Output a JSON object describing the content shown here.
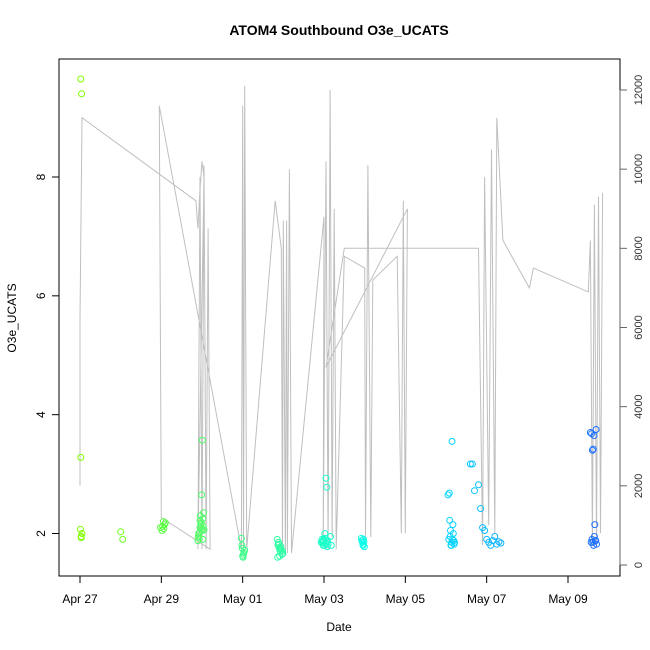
{
  "chart_data": {
    "type": "scatter",
    "title": "ATOM4 Southbound O3e_UCATS",
    "xlabel": "Date",
    "ylabel": "O3e_UCATS",
    "x_ticks": [
      "Apr 27",
      "Apr 29",
      "May 01",
      "May 03",
      "May 05",
      "May 07",
      "May 09"
    ],
    "x_range_days": [
      -0.6,
      12.7
    ],
    "y_ticks": [
      "2",
      "4",
      "6",
      "8"
    ],
    "ylim": [
      1.45,
      9.9
    ],
    "y2_ticks": [
      "0",
      "2000",
      "4000",
      "6000",
      "8000",
      "10000",
      "12000"
    ],
    "y2lim": [
      -400,
      12400
    ],
    "grid": false,
    "legend": "none",
    "colors": {
      "gray_line": "#bfbfbf",
      "point_gradient_start": "#7fff00",
      "point_gradient_mid": "#00ffff",
      "point_gradient_end": "#1e6fff"
    },
    "series": [
      {
        "type": "points",
        "x_days": [
          0.02,
          0.04,
          0.01,
          0.03,
          0.02,
          0.05,
          0.03,
          1.0,
          1.05,
          1.98,
          2.02,
          2.05,
          2.08,
          2.1,
          2.03,
          2.06,
          2.9,
          2.92,
          2.95,
          2.97,
          3.0,
          3.02,
          2.93,
          2.96,
          2.99,
          3.01,
          3.03,
          2.94,
          2.98,
          3.0,
          3.04,
          2.91,
          2.95,
          3.05,
          3.02,
          3.97,
          3.98,
          4.0,
          4.02,
          4.05,
          4.03,
          3.99,
          4.01,
          4.85,
          4.88,
          4.9,
          4.92,
          4.95,
          4.97,
          4.87,
          4.91,
          4.94,
          4.98,
          4.86,
          4.93,
          4.99,
          4.89,
          5.93,
          5.95,
          5.98,
          6.0,
          6.02,
          6.05,
          6.07,
          6.1,
          5.97,
          6.03,
          6.08,
          5.96,
          6.01,
          6.06,
          5.99,
          6.04,
          6.09,
          6.16,
          6.18,
          6.93,
          6.95,
          6.97,
          6.99,
          6.92,
          6.96,
          6.98,
          6.94,
          6.96,
          9.05,
          9.08,
          9.1,
          9.12,
          9.15,
          9.18,
          9.2,
          9.07,
          9.11,
          9.14,
          9.17,
          9.19,
          9.09,
          9.13,
          9.16,
          9.21,
          9.6,
          9.65,
          9.7,
          9.8,
          9.85,
          9.9,
          9.95,
          10.0,
          10.05,
          10.1,
          10.15,
          10.2,
          10.25,
          10.3,
          10.35
        ],
        "y": [
          9.65,
          9.4,
          2.07,
          1.95,
          3.28,
          2.0,
          1.93,
          2.03,
          1.9,
          2.1,
          2.05,
          2.2,
          2.15,
          2.18,
          2.12,
          2.08,
          1.88,
          2.0,
          2.1,
          2.15,
          2.05,
          2.25,
          1.92,
          2.3,
          2.65,
          3.57,
          2.12,
          2.02,
          2.18,
          2.08,
          2.35,
          1.95,
          2.22,
          2.06,
          1.9,
          1.92,
          1.8,
          1.62,
          1.65,
          1.72,
          1.68,
          1.75,
          1.6,
          1.9,
          1.85,
          1.75,
          1.7,
          1.72,
          1.65,
          1.8,
          1.62,
          1.78,
          1.7,
          1.6,
          1.74,
          1.66,
          1.82,
          1.85,
          1.9,
          1.8,
          1.88,
          2.0,
          2.93,
          2.78,
          1.82,
          1.87,
          1.92,
          1.78,
          1.85,
          1.8,
          1.87,
          1.9,
          1.82,
          1.88,
          1.95,
          1.8,
          1.88,
          1.85,
          1.9,
          1.78,
          1.92,
          1.82,
          1.86,
          1.88,
          1.8,
          2.65,
          2.68,
          1.95,
          1.8,
          3.55,
          2.0,
          1.82,
          1.9,
          2.05,
          1.85,
          2.15,
          1.88,
          2.22,
          1.8,
          1.9,
          1.85,
          3.17,
          3.17,
          2.72,
          2.82,
          2.42,
          2.1,
          2.05,
          1.9,
          1.85,
          1.8,
          1.88,
          1.95,
          1.82,
          1.86,
          1.84
        ],
        "y_note_source": "estimated"
      },
      {
        "type": "points_late",
        "x_days": [
          12.55,
          12.58,
          12.6,
          12.62,
          12.65,
          12.68,
          12.7,
          12.57,
          12.63,
          12.66,
          12.59,
          12.61,
          12.64,
          12.69,
          12.67
        ],
        "y": [
          3.7,
          3.68,
          3.4,
          3.42,
          1.95,
          1.88,
          1.82,
          1.85,
          1.8,
          2.15,
          1.9,
          1.85,
          3.65,
          3.75,
          1.88
        ]
      },
      {
        "type": "gray_profile",
        "points_days_y2": [
          [
            0.0,
            2000
          ],
          [
            0.0,
            6200
          ],
          [
            0.05,
            11300
          ],
          [
            2.85,
            9200
          ],
          [
            2.9,
            8500
          ],
          [
            2.95,
            9500
          ],
          [
            3.0,
            10200
          ],
          [
            3.05,
            9800
          ],
          [
            2.9,
            400
          ],
          [
            2.95,
            9800
          ],
          [
            3.0,
            400
          ],
          [
            3.05,
            10100
          ],
          [
            3.1,
            400
          ],
          [
            3.15,
            8500
          ],
          [
            3.2,
            400
          ],
          [
            2.0,
            1200
          ],
          [
            1.95,
            11600
          ],
          [
            3.97,
            400
          ],
          [
            4.0,
            11600
          ],
          [
            4.02,
            300
          ],
          [
            4.05,
            12100
          ],
          [
            4.1,
            400
          ],
          [
            4.8,
            9200
          ],
          [
            4.95,
            8000
          ],
          [
            4.98,
            300
          ],
          [
            5.0,
            8700
          ],
          [
            5.05,
            300
          ],
          [
            5.08,
            8700
          ],
          [
            5.1,
            300
          ],
          [
            5.15,
            10000
          ],
          [
            5.2,
            300
          ],
          [
            6.0,
            8800
          ],
          [
            5.98,
            500
          ],
          [
            6.05,
            10200
          ],
          [
            6.1,
            400
          ],
          [
            6.15,
            12000
          ],
          [
            6.2,
            700
          ],
          [
            6.25,
            9000
          ],
          [
            6.3,
            400
          ],
          [
            6.5,
            7800
          ],
          [
            7.0,
            7500
          ],
          [
            7.02,
            600
          ],
          [
            7.08,
            10100
          ],
          [
            7.15,
            700
          ],
          [
            7.2,
            7200
          ],
          [
            7.8,
            7800
          ],
          [
            7.9,
            800
          ],
          [
            7.95,
            9200
          ],
          [
            8.0,
            800
          ],
          [
            8.05,
            9000
          ],
          [
            6.05,
            5000
          ],
          [
            6.5,
            8000
          ],
          [
            9.8,
            8000
          ],
          [
            9.9,
            500
          ],
          [
            9.95,
            9800
          ],
          [
            10.05,
            1000
          ],
          [
            10.12,
            10500
          ],
          [
            10.2,
            800
          ],
          [
            10.25,
            11300
          ],
          [
            10.4,
            8200
          ],
          [
            11.05,
            7000
          ],
          [
            11.15,
            7500
          ],
          [
            12.5,
            6900
          ],
          [
            12.55,
            8200
          ],
          [
            12.6,
            500
          ],
          [
            12.65,
            9100
          ],
          [
            12.7,
            500
          ],
          [
            12.75,
            9300
          ],
          [
            12.8,
            800
          ],
          [
            12.85,
            9400
          ]
        ]
      }
    ]
  }
}
